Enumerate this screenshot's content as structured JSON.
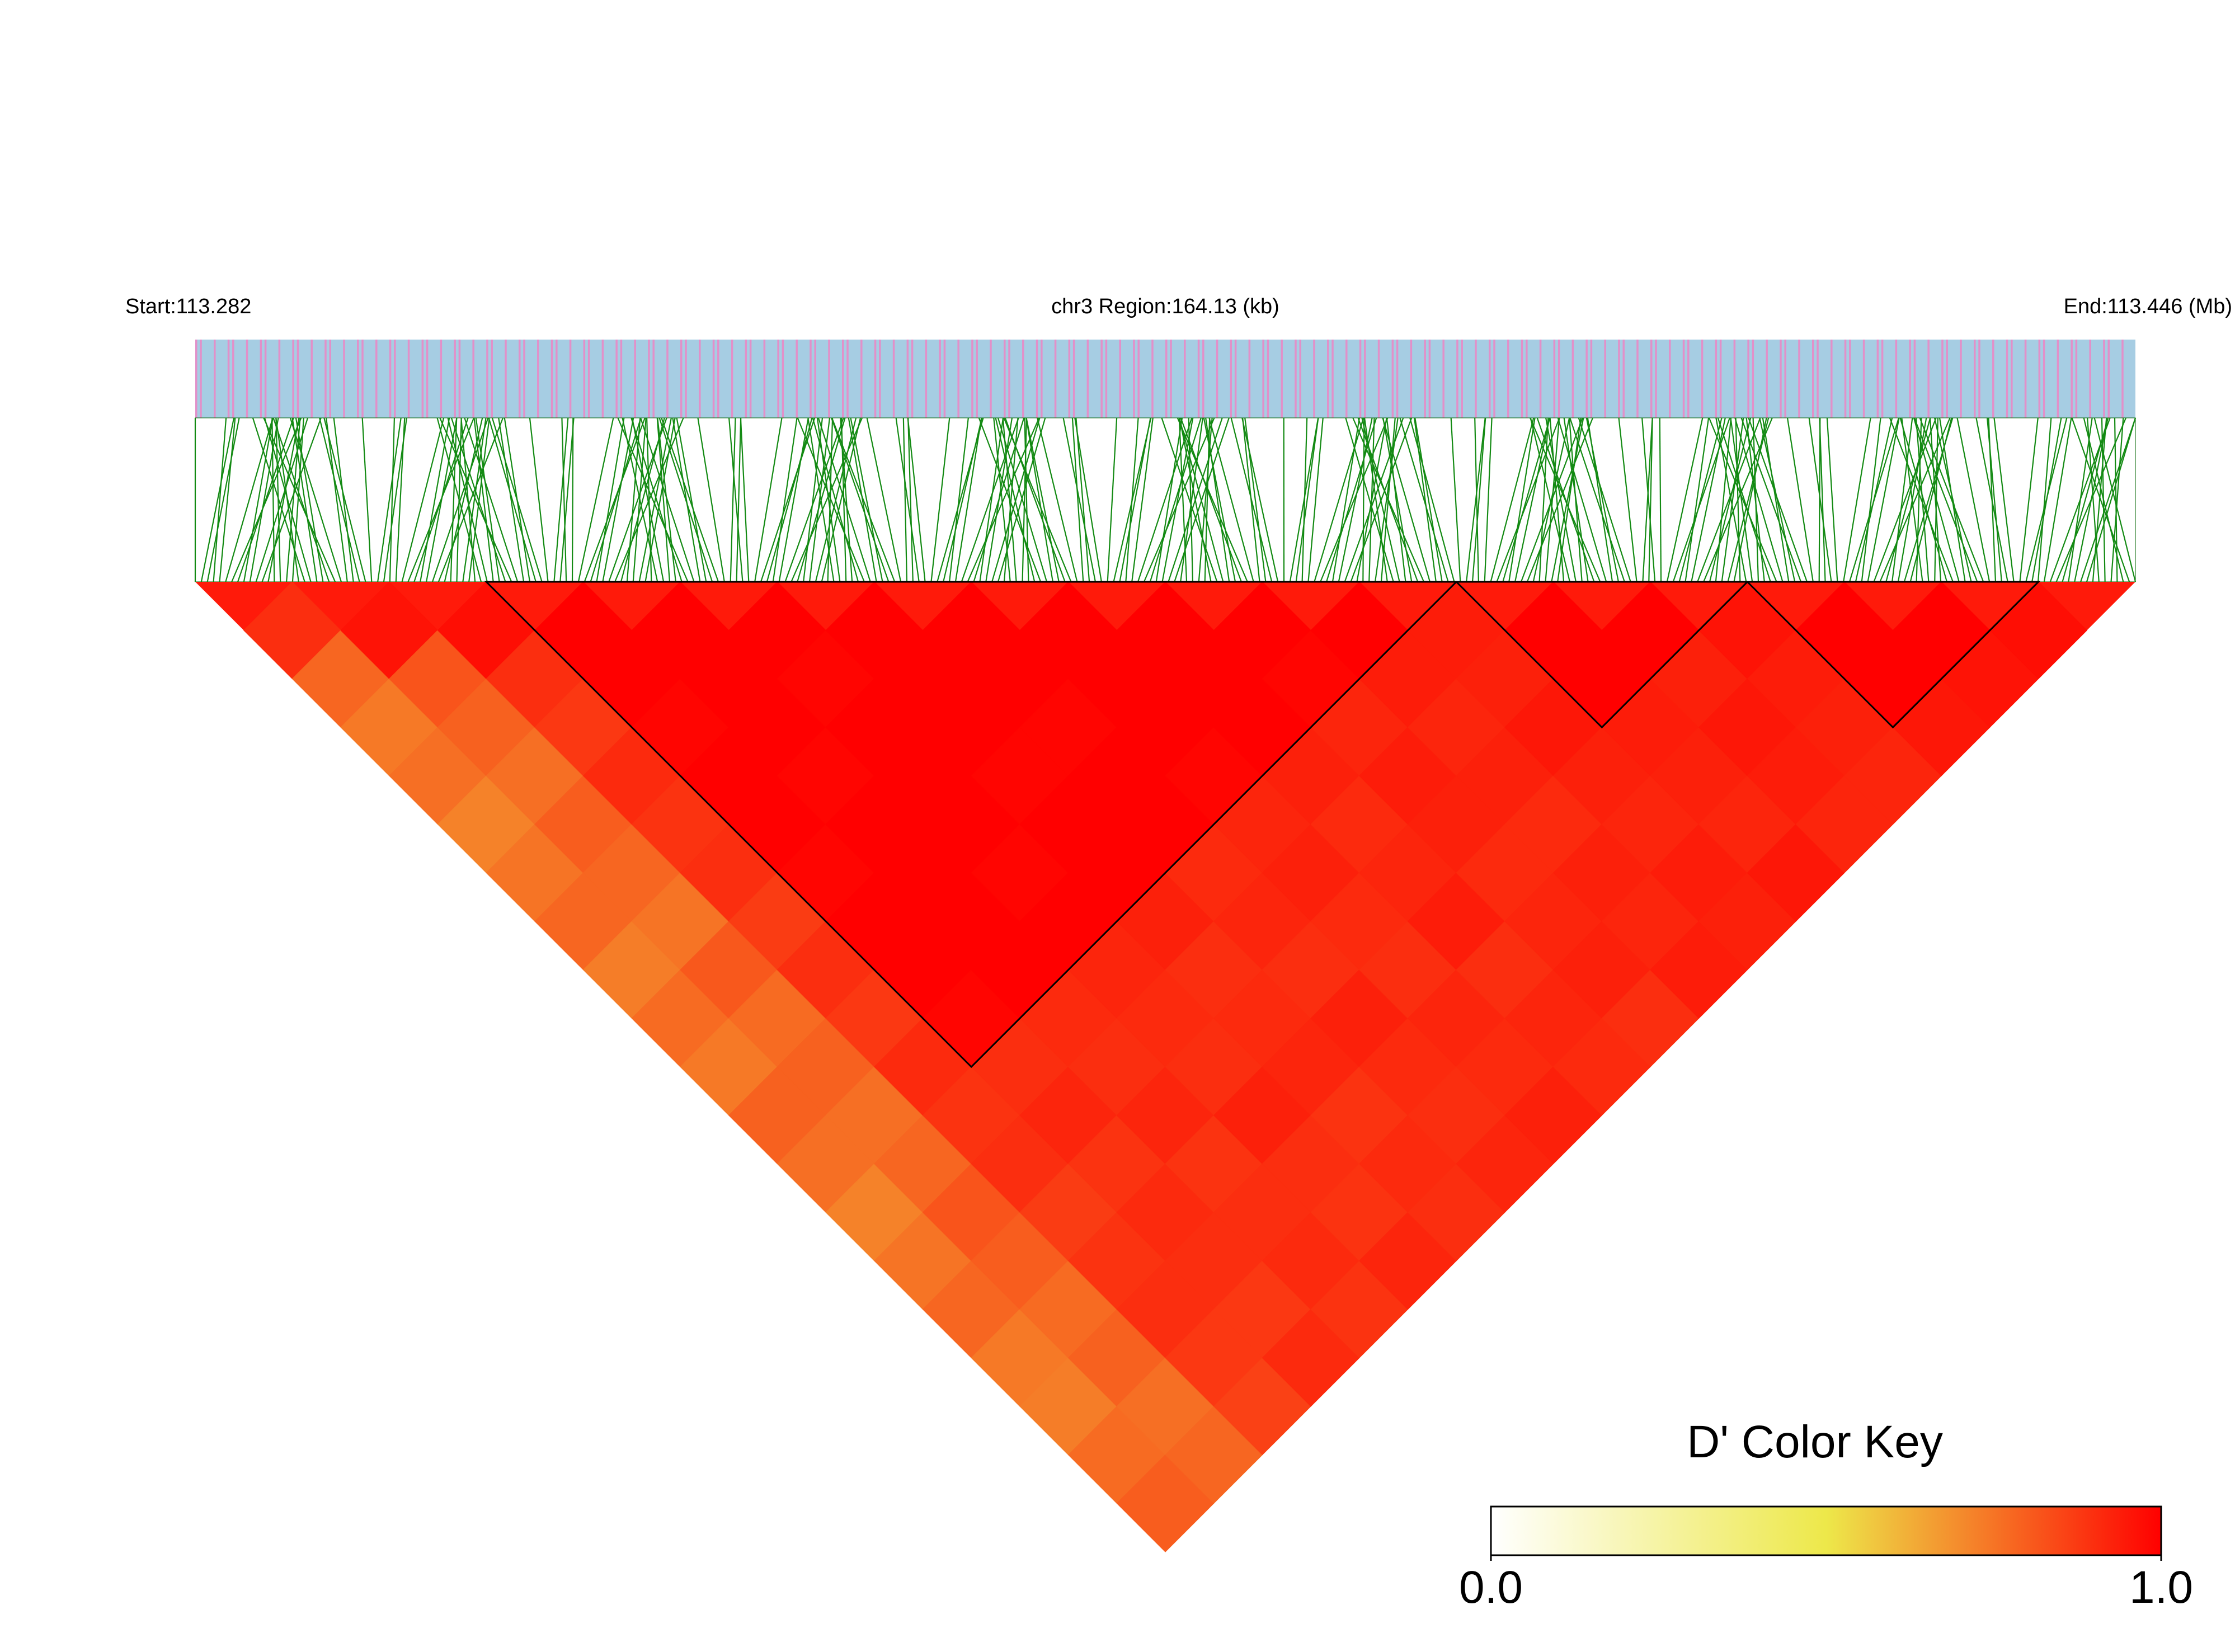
{
  "chart_data": {
    "type": "ld-heatmap",
    "start_label": "Start:113.282",
    "region_label": "chr3 Region:164.13 (kb)",
    "end_label": "End:113.446 (Mb)",
    "key_title": "D' Color Key",
    "key_lim": [
      0,
      1
    ],
    "key_ticks": [
      {
        "value": 0,
        "label": "0.0"
      },
      {
        "value": 1,
        "label": "1.0"
      }
    ],
    "colors": [
      "#ffffff",
      "#ede84a",
      "#ff0000"
    ],
    "dprime": [
      [
        0.9,
        0.78,
        0.74,
        0.76,
        0.72,
        0.75,
        0.78,
        0.73,
        0.77,
        0.74,
        0.79,
        0.76,
        0.72,
        0.75,
        0.78,
        0.74,
        0.73,
        0.77,
        0.8
      ],
      [
        0.96,
        0.82,
        0.79,
        0.76,
        0.8,
        0.78,
        0.75,
        0.81,
        0.77,
        0.79,
        0.76,
        0.78,
        0.82,
        0.8,
        0.77,
        0.79,
        0.76,
        0.78
      ],
      [
        0.97,
        0.9,
        0.88,
        0.91,
        0.89,
        0.9,
        0.87,
        0.9,
        0.88,
        0.91,
        0.89,
        0.9,
        0.87,
        0.89,
        0.9,
        0.88,
        0.86
      ],
      [
        1,
        1,
        0.99,
        1,
        1,
        0.99,
        1,
        1,
        0.99,
        0.9,
        0.92,
        0.89,
        0.91,
        0.9,
        0.88,
        0.91
      ],
      [
        1,
        1,
        1,
        0.99,
        1,
        1,
        1,
        1,
        0.91,
        0.9,
        0.92,
        0.89,
        0.9,
        0.91,
        0.89
      ],
      [
        1,
        0.99,
        1,
        1,
        1,
        0.99,
        1,
        0.92,
        0.91,
        0.9,
        0.93,
        0.9,
        0.89,
        0.92
      ],
      [
        1,
        1,
        1,
        0.99,
        1,
        1,
        0.93,
        0.9,
        0.91,
        0.92,
        0.89,
        0.91,
        0.9
      ],
      [
        1,
        1,
        0.99,
        1,
        1,
        0.91,
        0.92,
        0.9,
        0.93,
        0.91,
        0.9,
        0.92
      ],
      [
        1,
        1,
        1,
        0.99,
        0.92,
        0.93,
        0.91,
        0.9,
        0.92,
        0.91,
        0.93
      ],
      [
        1,
        1,
        1,
        0.93,
        0.91,
        0.92,
        0.94,
        0.9,
        0.92,
        0.91
      ],
      [
        1,
        0.99,
        0.92,
        0.94,
        0.93,
        0.91,
        0.92,
        0.93,
        0.9
      ],
      [
        1,
        0.94,
        0.92,
        0.93,
        0.91,
        0.93,
        0.92,
        0.94
      ],
      [
        0.94,
        0.93,
        0.95,
        0.93,
        0.92,
        0.94,
        0.93
      ],
      [
        1,
        1,
        0.94,
        0.93,
        0.92,
        0.95
      ],
      [
        1,
        0.93,
        0.95,
        0.94,
        0.92
      ],
      [
        0.96,
        0.94,
        0.93,
        0.92
      ],
      [
        1,
        1,
        0.95
      ],
      [
        1,
        0.96
      ],
      [
        0.97
      ]
    ],
    "blocks": [
      [
        3,
        12
      ],
      [
        13,
        15
      ],
      [
        16,
        18
      ]
    ]
  }
}
